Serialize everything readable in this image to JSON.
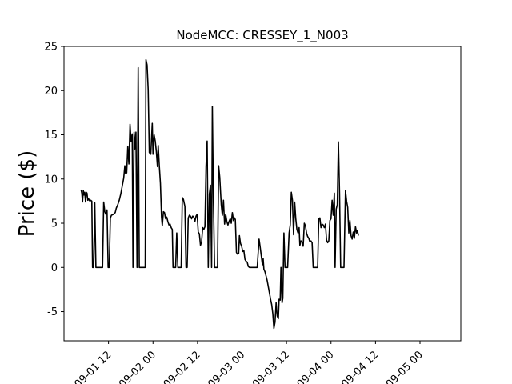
{
  "chart_data": {
    "type": "line",
    "title": "NodeMCC: CRESSEY_1_N003",
    "xlabel": "",
    "ylabel": "Price ($)",
    "ylim": [
      -8.3,
      25
    ],
    "yticks": [
      -5,
      0,
      5,
      10,
      15,
      20,
      25
    ],
    "xlim_hours": [
      0,
      107
    ],
    "xticks": [
      {
        "label": "09-01 12",
        "hour": 12
      },
      {
        "label": "09-02 00",
        "hour": 24
      },
      {
        "label": "09-02 12",
        "hour": 36
      },
      {
        "label": "09-03 00",
        "hour": 48
      },
      {
        "label": "09-03 12",
        "hour": 60
      },
      {
        "label": "09-04 00",
        "hour": 72
      },
      {
        "label": "09-04 12",
        "hour": 84
      },
      {
        "label": "09-05 00",
        "hour": 96
      }
    ],
    "series": [
      {
        "name": "",
        "color": "#000000",
        "points": [
          [
            4.6,
            8.8
          ],
          [
            4.8,
            8.4
          ],
          [
            5.0,
            7.4
          ],
          [
            5.2,
            8.7
          ],
          [
            5.4,
            8.2
          ],
          [
            5.6,
            8.5
          ],
          [
            5.8,
            7.4
          ],
          [
            6.0,
            8.5
          ],
          [
            6.2,
            8.4
          ],
          [
            6.4,
            7.6
          ],
          [
            6.6,
            7.8
          ],
          [
            6.8,
            7.6
          ],
          [
            7.0,
            7.5
          ],
          [
            7.2,
            7.6
          ],
          [
            7.5,
            7.5
          ],
          [
            7.7,
            0
          ],
          [
            8.0,
            0
          ],
          [
            8.3,
            7.3
          ],
          [
            8.6,
            0
          ],
          [
            9.0,
            0
          ],
          [
            9.5,
            0
          ],
          [
            10.0,
            0
          ],
          [
            10.4,
            0
          ],
          [
            10.7,
            7.4
          ],
          [
            11.0,
            6.3
          ],
          [
            11.3,
            6.0
          ],
          [
            11.6,
            6.5
          ],
          [
            11.9,
            0
          ],
          [
            12.2,
            0
          ],
          [
            12.5,
            5.6
          ],
          [
            12.8,
            5.9
          ],
          [
            13.3,
            6.0
          ],
          [
            13.8,
            6.2
          ],
          [
            14.1,
            6.7
          ],
          [
            14.5,
            7.1
          ],
          [
            14.9,
            7.6
          ],
          [
            15.3,
            8.3
          ],
          [
            15.7,
            9.2
          ],
          [
            16.1,
            10.1
          ],
          [
            16.4,
            11.5
          ],
          [
            16.6,
            10.6
          ],
          [
            16.9,
            10.7
          ],
          [
            17.2,
            13.7
          ],
          [
            17.5,
            11.7
          ],
          [
            17.8,
            16.2
          ],
          [
            18.1,
            14.2
          ],
          [
            18.4,
            15.1
          ],
          [
            18.6,
            0
          ],
          [
            18.9,
            15.3
          ],
          [
            19.1,
            13.4
          ],
          [
            19.4,
            15.3
          ],
          [
            19.7,
            0
          ],
          [
            20.0,
            22.6
          ],
          [
            20.3,
            0
          ],
          [
            20.6,
            0
          ],
          [
            21.0,
            0
          ],
          [
            21.5,
            0
          ],
          [
            21.9,
            0
          ],
          [
            22.1,
            23.5
          ],
          [
            22.4,
            22.9
          ],
          [
            22.7,
            20.1
          ],
          [
            23.0,
            13.0
          ],
          [
            23.4,
            12.8
          ],
          [
            23.8,
            16.3
          ],
          [
            24.0,
            12.8
          ],
          [
            24.3,
            15.0
          ],
          [
            24.6,
            14.3
          ],
          [
            24.9,
            13.1
          ],
          [
            25.2,
            11.4
          ],
          [
            25.4,
            13.8
          ],
          [
            25.7,
            11.5
          ],
          [
            26.0,
            9.5
          ],
          [
            26.3,
            5.7
          ],
          [
            26.5,
            4.7
          ],
          [
            26.8,
            6.3
          ],
          [
            27.1,
            6.2
          ],
          [
            27.4,
            5.5
          ],
          [
            27.7,
            5.7
          ],
          [
            28.0,
            5.2
          ],
          [
            28.3,
            4.8
          ],
          [
            28.6,
            4.9
          ],
          [
            28.9,
            4.5
          ],
          [
            29.2,
            4.3
          ],
          [
            29.4,
            0
          ],
          [
            29.8,
            0
          ],
          [
            30.1,
            0
          ],
          [
            30.4,
            3.9
          ],
          [
            30.7,
            0
          ],
          [
            31.2,
            0
          ],
          [
            31.6,
            0
          ],
          [
            31.9,
            7.9
          ],
          [
            32.2,
            7.7
          ],
          [
            32.6,
            6.9
          ],
          [
            32.9,
            0
          ],
          [
            33.2,
            0
          ],
          [
            33.5,
            5.6
          ],
          [
            33.8,
            5.9
          ],
          [
            34.1,
            5.8
          ],
          [
            34.4,
            5.5
          ],
          [
            34.7,
            5.8
          ],
          [
            35.0,
            5.7
          ],
          [
            35.3,
            5.2
          ],
          [
            35.6,
            5.8
          ],
          [
            35.9,
            6.0
          ],
          [
            36.2,
            4.0
          ],
          [
            36.5,
            3.8
          ],
          [
            36.8,
            2.5
          ],
          [
            37.1,
            2.9
          ],
          [
            37.4,
            4.5
          ],
          [
            37.7,
            4.3
          ],
          [
            38.0,
            4.6
          ],
          [
            38.3,
            11.4
          ],
          [
            38.6,
            14.3
          ],
          [
            38.9,
            0
          ],
          [
            39.2,
            8.3
          ],
          [
            39.5,
            9.3
          ],
          [
            39.8,
            0
          ],
          [
            40.0,
            18.2
          ],
          [
            40.3,
            7.3
          ],
          [
            40.6,
            0
          ],
          [
            41.0,
            0
          ],
          [
            41.4,
            0
          ],
          [
            41.7,
            11.5
          ],
          [
            42.0,
            10.2
          ],
          [
            42.4,
            7.1
          ],
          [
            42.7,
            5.9
          ],
          [
            43.0,
            7.6
          ],
          [
            43.3,
            4.9
          ],
          [
            43.6,
            6.0
          ],
          [
            43.9,
            5.2
          ],
          [
            44.2,
            4.8
          ],
          [
            44.5,
            5.2
          ],
          [
            44.8,
            5.5
          ],
          [
            45.1,
            5.0
          ],
          [
            45.4,
            6.2
          ],
          [
            45.7,
            5.3
          ],
          [
            46.0,
            5.6
          ],
          [
            46.2,
            5.4
          ],
          [
            46.5,
            1.7
          ],
          [
            46.8,
            1.5
          ],
          [
            47.1,
            1.6
          ],
          [
            47.3,
            3.6
          ],
          [
            47.6,
            2.7
          ],
          [
            47.9,
            2.4
          ],
          [
            48.2,
            1.8
          ],
          [
            48.5,
            1.9
          ],
          [
            48.8,
            0.9
          ],
          [
            49.1,
            0.7
          ],
          [
            49.4,
            0.6
          ],
          [
            49.7,
            0.1
          ],
          [
            50.0,
            0
          ],
          [
            50.5,
            0
          ],
          [
            51.0,
            0
          ],
          [
            51.6,
            0
          ],
          [
            52.1,
            0
          ],
          [
            52.6,
            3.2
          ],
          [
            52.9,
            2.3
          ],
          [
            53.2,
            1.3
          ],
          [
            53.5,
            0.3
          ],
          [
            53.7,
            1.0
          ],
          [
            53.9,
            -0.2
          ],
          [
            54.2,
            -0.5
          ],
          [
            54.5,
            -1.0
          ],
          [
            54.8,
            -1.5
          ],
          [
            55.1,
            -2.2
          ],
          [
            55.4,
            -2.9
          ],
          [
            55.7,
            -3.6
          ],
          [
            56.0,
            -4.2
          ],
          [
            56.3,
            -5.2
          ],
          [
            56.6,
            -6.9
          ],
          [
            56.9,
            -6.2
          ],
          [
            57.2,
            -4.0
          ],
          [
            57.5,
            -5.5
          ],
          [
            57.8,
            -5.8
          ],
          [
            58.0,
            -3.6
          ],
          [
            58.3,
            -3.7
          ],
          [
            58.5,
            0
          ],
          [
            58.8,
            -4.0
          ],
          [
            59.0,
            -3.5
          ],
          [
            59.3,
            3.9
          ],
          [
            59.6,
            0
          ],
          [
            60.0,
            0
          ],
          [
            60.3,
            0
          ],
          [
            60.7,
            3.9
          ],
          [
            61.0,
            4.8
          ],
          [
            61.3,
            8.5
          ],
          [
            61.6,
            7.6
          ],
          [
            61.9,
            3.7
          ],
          [
            62.2,
            7.4
          ],
          [
            62.5,
            5.5
          ],
          [
            62.8,
            4.3
          ],
          [
            63.1,
            3.9
          ],
          [
            63.4,
            4.5
          ],
          [
            63.6,
            2.5
          ],
          [
            63.9,
            3.0
          ],
          [
            64.2,
            2.9
          ],
          [
            64.5,
            2.4
          ],
          [
            64.8,
            5.0
          ],
          [
            65.1,
            4.7
          ],
          [
            65.4,
            3.9
          ],
          [
            65.7,
            3.5
          ],
          [
            66.0,
            3.3
          ],
          [
            66.3,
            2.9
          ],
          [
            66.6,
            3.0
          ],
          [
            66.9,
            2.8
          ],
          [
            67.2,
            0
          ],
          [
            67.6,
            0
          ],
          [
            68.0,
            0
          ],
          [
            68.4,
            0
          ],
          [
            68.7,
            5.5
          ],
          [
            69.0,
            5.6
          ],
          [
            69.3,
            4.5
          ],
          [
            69.6,
            4.9
          ],
          [
            69.9,
            4.8
          ],
          [
            70.2,
            4.5
          ],
          [
            70.5,
            4.9
          ],
          [
            70.8,
            3.1
          ],
          [
            71.1,
            2.8
          ],
          [
            71.4,
            3.0
          ],
          [
            71.7,
            5.3
          ],
          [
            72.0,
            5.5
          ],
          [
            72.3,
            7.6
          ],
          [
            72.6,
            5.9
          ],
          [
            72.9,
            8.4
          ],
          [
            73.1,
            0
          ],
          [
            73.4,
            6.6
          ],
          [
            73.7,
            7.1
          ],
          [
            74.0,
            14.2
          ],
          [
            74.3,
            8.4
          ],
          [
            74.6,
            0
          ],
          [
            75.0,
            0
          ],
          [
            75.5,
            0
          ],
          [
            75.9,
            8.7
          ],
          [
            76.2,
            7.5
          ],
          [
            76.5,
            6.8
          ],
          [
            76.8,
            3.9
          ],
          [
            77.1,
            5.3
          ],
          [
            77.4,
            3.6
          ],
          [
            77.7,
            3.2
          ],
          [
            78.0,
            4.0
          ],
          [
            78.3,
            3.3
          ],
          [
            78.6,
            4.6
          ],
          [
            78.9,
            3.9
          ],
          [
            79.1,
            4.2
          ],
          [
            79.4,
            3.6
          ]
        ]
      }
    ]
  }
}
